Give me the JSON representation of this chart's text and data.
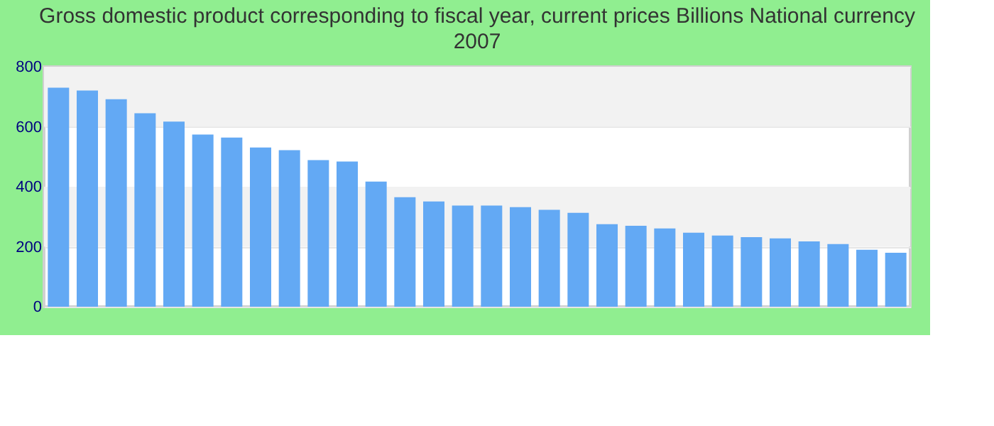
{
  "chart_data": {
    "type": "bar",
    "title": "Gross domestic product corresponding to fiscal year, current prices Billions National currency",
    "subtitle": "2007",
    "categories": [
      null,
      null,
      null,
      null,
      null,
      null,
      null,
      null,
      null,
      null,
      null,
      null,
      null,
      null,
      null,
      null,
      null,
      null,
      null,
      null,
      null,
      null,
      null,
      null,
      null,
      null,
      null,
      null,
      null,
      null
    ],
    "values": [
      730,
      721,
      692,
      645,
      617,
      574,
      564,
      531,
      522,
      489,
      484,
      417,
      365,
      351,
      337,
      337,
      332,
      323,
      313,
      275,
      270,
      261,
      247,
      237,
      232,
      228,
      218,
      209,
      190,
      180
    ],
    "color": "#63a9f4",
    "ylim": [
      0,
      800
    ],
    "yticks": [
      0,
      200,
      400,
      600,
      800
    ],
    "grid": "y"
  }
}
